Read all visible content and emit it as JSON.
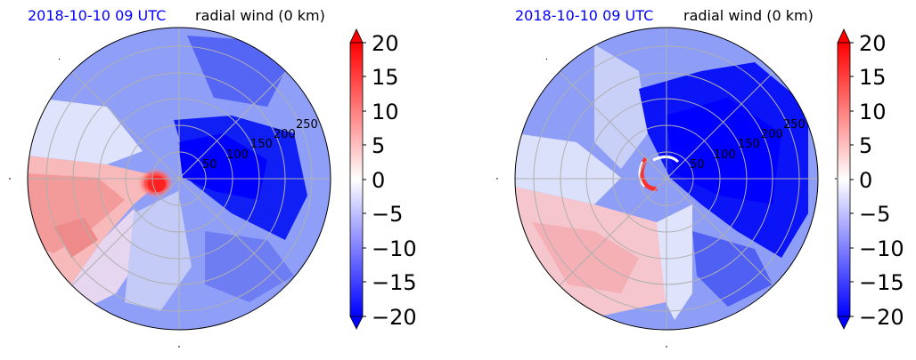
{
  "colors": {
    "negative": "#0000ff",
    "neutral": "#ffffff",
    "positive": "#ff0000",
    "grid": "#b0b0b0",
    "date": "#0000ff"
  },
  "chart_data": [
    {
      "type": "polar-contour",
      "title_left": "2018-10-10 09 UTC",
      "title_right": "radial wind (0 km)",
      "radial_ticks": [
        "50",
        "100",
        "150",
        "200",
        "250"
      ],
      "radial_tick_values": [
        50,
        100,
        150,
        200,
        250
      ],
      "rmax": 285,
      "colorbar": {
        "ticks": [
          "20",
          "15",
          "10",
          "5",
          "0",
          "−5",
          "−10",
          "−15",
          "−20"
        ],
        "range": [
          -20,
          20
        ],
        "extend": "both"
      }
    },
    {
      "type": "polar-contour",
      "title_left": "2018-10-10 09 UTC",
      "title_right": "radial wind (0 km)",
      "radial_ticks": [
        "50",
        "100",
        "150",
        "200",
        "250"
      ],
      "radial_tick_values": [
        50,
        100,
        150,
        200,
        250
      ],
      "rmax": 285,
      "colorbar": {
        "ticks": [
          "20",
          "15",
          "10",
          "5",
          "0",
          "−5",
          "−10",
          "−15",
          "−20"
        ],
        "range": [
          -20,
          20
        ],
        "extend": "both"
      }
    }
  ]
}
